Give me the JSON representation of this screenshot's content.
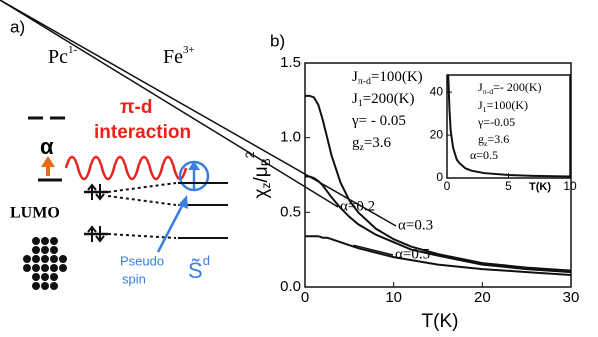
{
  "panel_a": {
    "label": "a)",
    "pc": "Pc",
    "pc_sup": "1-",
    "fe": "Fe",
    "fe_sup": "3+",
    "interaction_1": "π-d",
    "interaction_2": "interaction",
    "alpha": "α",
    "lumo": "LUMO",
    "pseudo_1": "Pseudo",
    "pseudo_2": "spin",
    "s": "S̃",
    "s_sup": "d"
  },
  "chart_data": [
    {
      "type": "line",
      "label": "b)",
      "xlabel": "T(K)",
      "ylabel_parts": [
        "χ",
        "z",
        "/μ",
        "B",
        "2"
      ],
      "xlim": [
        0,
        30
      ],
      "xticks": [
        0,
        10,
        20,
        30
      ],
      "ylim": [
        0,
        1.5
      ],
      "yticks": [
        {
          "value": 0,
          "label": "0.0"
        },
        0.5,
        {
          "value": 1,
          "label": "1.0"
        },
        1.5
      ],
      "params": [
        {
          "t": "J",
          "sub": "π-d",
          "v": "=100(K)"
        },
        {
          "t": "J",
          "sub": "1",
          "v": "=200(K)"
        },
        {
          "t": "γ= - 0.05"
        },
        {
          "t": "g",
          "sub": "z",
          "v": "=3.6"
        }
      ],
      "x": [
        0,
        0.5,
        1,
        1.5,
        2,
        2.5,
        3,
        4,
        5,
        6,
        8,
        10,
        12,
        15,
        20,
        25,
        30
      ],
      "series": [
        {
          "name": "α=0.2",
          "color": "#111111",
          "values": [
            1.28,
            1.28,
            1.27,
            1.22,
            1.12,
            1.0,
            0.88,
            0.7,
            0.58,
            0.5,
            0.39,
            0.32,
            0.27,
            0.22,
            0.16,
            0.13,
            0.11
          ]
        },
        {
          "name": "α=0.3",
          "color": "#111111",
          "values": [
            0.74,
            0.74,
            0.73,
            0.71,
            0.68,
            0.64,
            0.6,
            0.53,
            0.47,
            0.42,
            0.35,
            0.3,
            0.25,
            0.21,
            0.15,
            0.12,
            0.1
          ]
        },
        {
          "name": "α=0.5",
          "color": "#111111",
          "values": [
            0.34,
            0.34,
            0.34,
            0.34,
            0.33,
            0.33,
            0.32,
            0.3,
            0.28,
            0.26,
            0.23,
            0.2,
            0.18,
            0.15,
            0.12,
            0.1,
            0.08
          ]
        }
      ]
    },
    {
      "type": "line",
      "xlabel": "T(K)",
      "xlim": [
        0,
        10
      ],
      "xticks": [
        0,
        5,
        10
      ],
      "ylim": [
        0,
        48
      ],
      "yticks": [
        0,
        20,
        40
      ],
      "params": [
        {
          "t": "J",
          "sub": "π-d",
          "v": "=- 200(K)"
        },
        {
          "t": "J",
          "sub": "1",
          "v": "=100(K)"
        },
        {
          "t": "γ=-0.05"
        },
        {
          "t": "g",
          "sub": "z",
          "v": "=3.6"
        }
      ],
      "x": [
        0.1,
        0.15,
        0.2,
        0.3,
        0.5,
        0.8,
        1,
        1.5,
        2,
        3,
        5,
        7,
        10
      ],
      "series": [
        {
          "name": "α=0.5",
          "color": "#111111",
          "values": [
            48,
            40,
            32,
            22,
            14,
            8.5,
            7,
            4.5,
            3.4,
            2.3,
            1.4,
            1.0,
            0.7
          ]
        }
      ]
    }
  ]
}
